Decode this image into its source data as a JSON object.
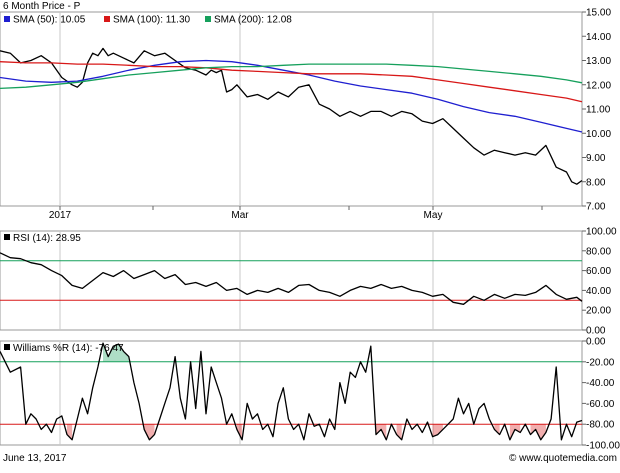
{
  "chart_data": [
    {
      "type": "line",
      "title": "6 Month Price - P",
      "legend": [
        {
          "label": "SMA (50): 10.05",
          "color": "#1f1fd0"
        },
        {
          "label": "SMA (100): 11.30",
          "color": "#d81818"
        },
        {
          "label": "SMA (200): 12.08",
          "color": "#16a05c"
        }
      ],
      "y_ticks": [
        "15.00",
        "14.00",
        "13.00",
        "12.00",
        "11.00",
        "10.00",
        "9.00",
        "8.00",
        "7.00"
      ],
      "ylim": [
        7,
        15
      ],
      "x_ticks": [
        {
          "label": "2017",
          "x": 13
        },
        {
          "label": "Mar",
          "x": 40
        },
        {
          "label": "May",
          "x": 81
        }
      ],
      "xlim": [
        0,
        113
      ],
      "series": [
        {
          "name": "P",
          "color": "#000000",
          "x": [
            0,
            2,
            4,
            6,
            8,
            10,
            12,
            14,
            15,
            16,
            17,
            18,
            19,
            20,
            21,
            22,
            24,
            26,
            28,
            30,
            32,
            34,
            36,
            38,
            40,
            41,
            42,
            43,
            44,
            45,
            46,
            48,
            50,
            52,
            54,
            56,
            58,
            60,
            62,
            64,
            66,
            68,
            70,
            72,
            74,
            76,
            78,
            80,
            82,
            84,
            86,
            88,
            90,
            92,
            94,
            96,
            98,
            100,
            102,
            104,
            106,
            108,
            110,
            111,
            112,
            113
          ],
          "values": [
            13.4,
            13.3,
            12.9,
            13.0,
            13.2,
            12.9,
            12.3,
            12.0,
            11.9,
            12.1,
            12.9,
            13.3,
            13.2,
            13.5,
            13.2,
            13.3,
            13.1,
            12.9,
            13.4,
            13.2,
            13.3,
            13.0,
            12.7,
            12.6,
            12.4,
            12.6,
            12.5,
            12.6,
            11.7,
            11.8,
            12.0,
            11.5,
            11.6,
            11.4,
            11.7,
            11.5,
            11.9,
            12.0,
            11.2,
            11.0,
            10.7,
            10.9,
            10.7,
            10.9,
            10.9,
            10.7,
            10.9,
            10.8,
            10.5,
            10.4,
            10.6,
            10.2,
            9.8,
            9.4,
            9.1,
            9.3,
            9.2,
            9.1,
            9.2,
            9.1,
            9.5,
            8.6,
            8.4,
            8.0,
            7.9,
            8.05
          ]
        },
        {
          "name": "SMA (50)",
          "color": "#1f1fd0",
          "x": [
            0,
            5,
            10,
            15,
            20,
            25,
            30,
            35,
            40,
            45,
            50,
            55,
            60,
            65,
            70,
            75,
            80,
            85,
            90,
            95,
            100,
            105,
            110,
            113
          ],
          "values": [
            12.3,
            12.15,
            12.1,
            12.15,
            12.35,
            12.6,
            12.8,
            12.95,
            13.0,
            12.95,
            12.8,
            12.6,
            12.4,
            12.15,
            11.95,
            11.8,
            11.65,
            11.4,
            11.1,
            10.85,
            10.7,
            10.45,
            10.2,
            10.05
          ]
        },
        {
          "name": "SMA (100)",
          "color": "#d81818",
          "x": [
            0,
            5,
            10,
            15,
            20,
            25,
            30,
            35,
            40,
            45,
            50,
            55,
            60,
            65,
            70,
            75,
            80,
            85,
            90,
            95,
            100,
            105,
            110,
            113
          ],
          "values": [
            12.95,
            12.9,
            12.9,
            12.85,
            12.85,
            12.8,
            12.75,
            12.75,
            12.7,
            12.6,
            12.55,
            12.5,
            12.45,
            12.45,
            12.45,
            12.4,
            12.35,
            12.2,
            12.05,
            11.9,
            11.75,
            11.6,
            11.45,
            11.3
          ]
        },
        {
          "name": "SMA (200)",
          "color": "#16a05c",
          "x": [
            0,
            5,
            10,
            15,
            20,
            25,
            30,
            35,
            40,
            45,
            50,
            55,
            60,
            65,
            70,
            75,
            80,
            85,
            90,
            95,
            100,
            105,
            110,
            113
          ],
          "values": [
            11.85,
            11.9,
            12.0,
            12.1,
            12.25,
            12.4,
            12.5,
            12.6,
            12.7,
            12.75,
            12.75,
            12.8,
            12.85,
            12.85,
            12.85,
            12.85,
            12.8,
            12.75,
            12.65,
            12.55,
            12.45,
            12.35,
            12.2,
            12.08
          ]
        }
      ]
    },
    {
      "type": "line",
      "title": "RSI (14): 28.95",
      "y_ticks": [
        "100.00",
        "80.00",
        "60.00",
        "40.00",
        "20.00",
        "0.00"
      ],
      "ylim": [
        0,
        100
      ],
      "reference_lines": [
        {
          "value": 70,
          "color": "#16a05c"
        },
        {
          "value": 30,
          "color": "#d81818"
        }
      ],
      "series": [
        {
          "name": "RSI (14)",
          "color": "#000000",
          "x": [
            0,
            2,
            4,
            6,
            8,
            10,
            12,
            14,
            16,
            18,
            20,
            22,
            24,
            26,
            28,
            30,
            32,
            34,
            36,
            38,
            40,
            42,
            44,
            46,
            48,
            50,
            52,
            54,
            56,
            58,
            60,
            62,
            64,
            66,
            68,
            70,
            72,
            74,
            76,
            78,
            80,
            82,
            84,
            86,
            88,
            90,
            92,
            94,
            96,
            98,
            100,
            102,
            104,
            106,
            108,
            110,
            112,
            113
          ],
          "values": [
            78,
            73,
            72,
            68,
            66,
            60,
            55,
            45,
            42,
            50,
            58,
            54,
            60,
            52,
            56,
            60,
            52,
            56,
            46,
            48,
            44,
            48,
            40,
            42,
            36,
            40,
            38,
            42,
            38,
            45,
            46,
            40,
            38,
            34,
            40,
            44,
            42,
            46,
            42,
            44,
            40,
            38,
            34,
            36,
            28,
            26,
            34,
            30,
            36,
            32,
            36,
            35,
            38,
            45,
            36,
            31,
            33,
            29
          ]
        }
      ]
    },
    {
      "type": "line",
      "title": "Williams %R (14): -76.47",
      "y_ticks": [
        "0.00",
        "-20.00",
        "-40.00",
        "-60.00",
        "-80.00",
        "-100.00"
      ],
      "ylim": [
        -100,
        0
      ],
      "reference_lines": [
        {
          "value": -20,
          "color": "#16a05c"
        },
        {
          "value": -80,
          "color": "#d81818"
        }
      ],
      "series": [
        {
          "name": "Williams %R (14)",
          "color": "#000000",
          "x": [
            0,
            2,
            4,
            5,
            6,
            7,
            8,
            9,
            10,
            11,
            12,
            13,
            14,
            15,
            16,
            17,
            18,
            19,
            20,
            21,
            22,
            23,
            24,
            25,
            26,
            27,
            28,
            29,
            30,
            31,
            32,
            33,
            34,
            35,
            36,
            37,
            38,
            39,
            40,
            41,
            42,
            43,
            44,
            45,
            46,
            47,
            48,
            49,
            50,
            51,
            52,
            53,
            54,
            55,
            56,
            57,
            58,
            59,
            60,
            61,
            62,
            63,
            64,
            65,
            66,
            67,
            68,
            69,
            70,
            71,
            72,
            73,
            74,
            75,
            76,
            77,
            78,
            79,
            80,
            81,
            82,
            83,
            84,
            85,
            86,
            87,
            88,
            89,
            90,
            91,
            92,
            93,
            94,
            95,
            96,
            97,
            98,
            99,
            100,
            101,
            102,
            103,
            104,
            105,
            106,
            107,
            108,
            109,
            110,
            111,
            112,
            113
          ],
          "values": [
            -10,
            -30,
            -25,
            -80,
            -70,
            -75,
            -85,
            -80,
            -88,
            -75,
            -72,
            -90,
            -95,
            -75,
            -55,
            -70,
            -45,
            -25,
            -2,
            -15,
            -5,
            -3,
            -10,
            -15,
            -40,
            -60,
            -85,
            -95,
            -90,
            -75,
            -60,
            -45,
            -15,
            -55,
            -75,
            -20,
            -65,
            -10,
            -70,
            -25,
            -40,
            -55,
            -80,
            -70,
            -85,
            -95,
            -60,
            -75,
            -70,
            -85,
            -80,
            -92,
            -60,
            -45,
            -75,
            -85,
            -80,
            -95,
            -70,
            -82,
            -80,
            -92,
            -75,
            -85,
            -40,
            -60,
            -30,
            -35,
            -20,
            -30,
            -5,
            -90,
            -85,
            -95,
            -80,
            -90,
            -95,
            -75,
            -85,
            -80,
            -88,
            -78,
            -92,
            -90,
            -85,
            -80,
            -75,
            -55,
            -70,
            -60,
            -80,
            -65,
            -60,
            -75,
            -85,
            -90,
            -80,
            -95,
            -85,
            -88,
            -80,
            -90,
            -85,
            -95,
            -88,
            -75,
            -25,
            -95,
            -80,
            -92,
            -78,
            -76.47
          ]
        }
      ]
    }
  ],
  "footer": {
    "date": "June 13, 2017",
    "brand": "© www.quotemedia.com"
  }
}
